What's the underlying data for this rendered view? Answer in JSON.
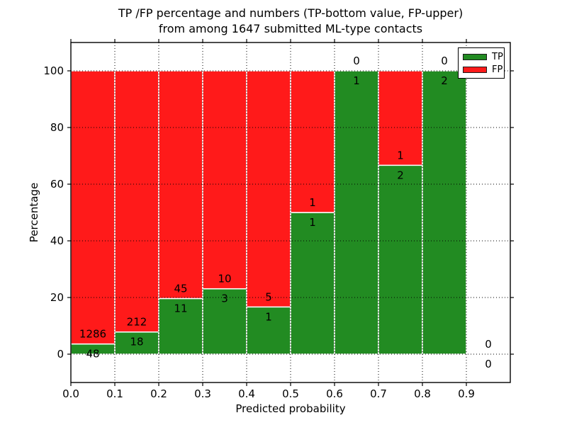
{
  "figure": {
    "title_line1": "TP /FP percentage and numbers (TP-bottom value, FP-upper)",
    "title_line2": "from among 1647 submitted ML-type contacts"
  },
  "chart_data": {
    "type": "bar",
    "stacked": true,
    "units": "percent of bin total",
    "title": "TP /FP percentage and numbers (TP-bottom value, FP-upper)\nfrom among 1647 submitted ML-type contacts",
    "xlabel": "Predicted probability",
    "ylabel": "Percentage",
    "xlim": [
      0.0,
      1.0
    ],
    "ylim": [
      -10,
      110
    ],
    "x_ticks": [
      "0.0",
      "0.1",
      "0.2",
      "0.3",
      "0.4",
      "0.5",
      "0.6",
      "0.7",
      "0.8",
      "0.9"
    ],
    "y_ticks": [
      0,
      20,
      40,
      60,
      80,
      100
    ],
    "grid": true,
    "grid_style": "dotted",
    "total_contacts": 1647,
    "colors": {
      "tp": "#228b22",
      "fp": "#ff1a1a",
      "bar_edge": "#ffffff",
      "grid": "#000000",
      "text": "#000000",
      "frame": "#000000"
    },
    "legend": {
      "position": "upper right",
      "entries": [
        {
          "label": "TP",
          "color": "#228b22"
        },
        {
          "label": "FP",
          "color": "#ff1a1a"
        }
      ]
    },
    "series": [
      {
        "name": "TP",
        "values": [
          48,
          18,
          11,
          3,
          1,
          1,
          1,
          2,
          2,
          0
        ]
      },
      {
        "name": "FP",
        "values": [
          1286,
          212,
          45,
          10,
          5,
          1,
          0,
          1,
          0,
          0
        ]
      }
    ],
    "bins": [
      {
        "x0": 0.0,
        "x1": 0.1,
        "tp": 48,
        "fp": 1286,
        "tp_pct": 3.6
      },
      {
        "x0": 0.1,
        "x1": 0.2,
        "tp": 18,
        "fp": 212,
        "tp_pct": 7.83
      },
      {
        "x0": 0.2,
        "x1": 0.3,
        "tp": 11,
        "fp": 45,
        "tp_pct": 19.64
      },
      {
        "x0": 0.3,
        "x1": 0.4,
        "tp": 3,
        "fp": 10,
        "tp_pct": 23.08
      },
      {
        "x0": 0.4,
        "x1": 0.5,
        "tp": 1,
        "fp": 5,
        "tp_pct": 16.67
      },
      {
        "x0": 0.5,
        "x1": 0.6,
        "tp": 1,
        "fp": 1,
        "tp_pct": 50.0
      },
      {
        "x0": 0.6,
        "x1": 0.7,
        "tp": 1,
        "fp": 0,
        "tp_pct": 100.0
      },
      {
        "x0": 0.7,
        "x1": 0.8,
        "tp": 2,
        "fp": 1,
        "tp_pct": 66.67
      },
      {
        "x0": 0.8,
        "x1": 0.9,
        "tp": 2,
        "fp": 0,
        "tp_pct": 100.0
      },
      {
        "x0": 0.9,
        "x1": 1.0,
        "tp": 0,
        "fp": 0,
        "tp_pct": null
      }
    ]
  }
}
